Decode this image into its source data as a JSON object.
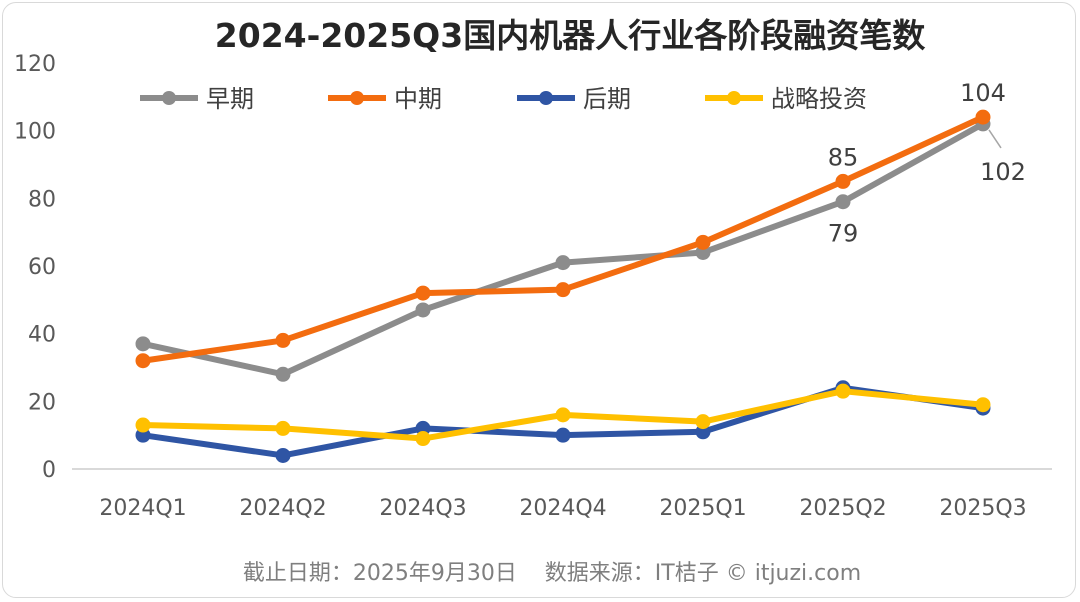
{
  "chart_data": {
    "type": "line",
    "title": "2024-2025Q3国内机器人行业各阶段融资笔数",
    "xlabel": "",
    "ylabel": "",
    "categories": [
      "2024Q1",
      "2024Q2",
      "2024Q3",
      "2024Q4",
      "2025Q1",
      "2025Q2",
      "2025Q3"
    ],
    "ylim": [
      0,
      120
    ],
    "yticks": [
      0,
      20,
      40,
      60,
      80,
      100,
      120
    ],
    "grid": false,
    "legend_position": "top",
    "series": [
      {
        "name": "早期",
        "color": "#8c8c8c",
        "values": [
          37,
          28,
          47,
          61,
          64,
          79,
          102
        ]
      },
      {
        "name": "中期",
        "color": "#f36c0f",
        "values": [
          32,
          38,
          52,
          53,
          67,
          85,
          104
        ]
      },
      {
        "name": "后期",
        "color": "#2f55a4",
        "values": [
          10,
          4,
          12,
          10,
          11,
          24,
          18
        ]
      },
      {
        "name": "战略投资",
        "color": "#ffc000",
        "values": [
          13,
          12,
          9,
          16,
          14,
          23,
          19
        ]
      }
    ],
    "data_labels": [
      {
        "series": "中期",
        "category": "2025Q2",
        "text": "85",
        "pos": "above"
      },
      {
        "series": "早期",
        "category": "2025Q2",
        "text": "79",
        "pos": "below"
      },
      {
        "series": "中期",
        "category": "2025Q3",
        "text": "104",
        "pos": "above"
      },
      {
        "series": "早期",
        "category": "2025Q3",
        "text": "102",
        "pos": "below-right"
      }
    ]
  },
  "footer": "截止日期：2025年9月30日    数据来源：IT桔子 © itjuzi.com"
}
